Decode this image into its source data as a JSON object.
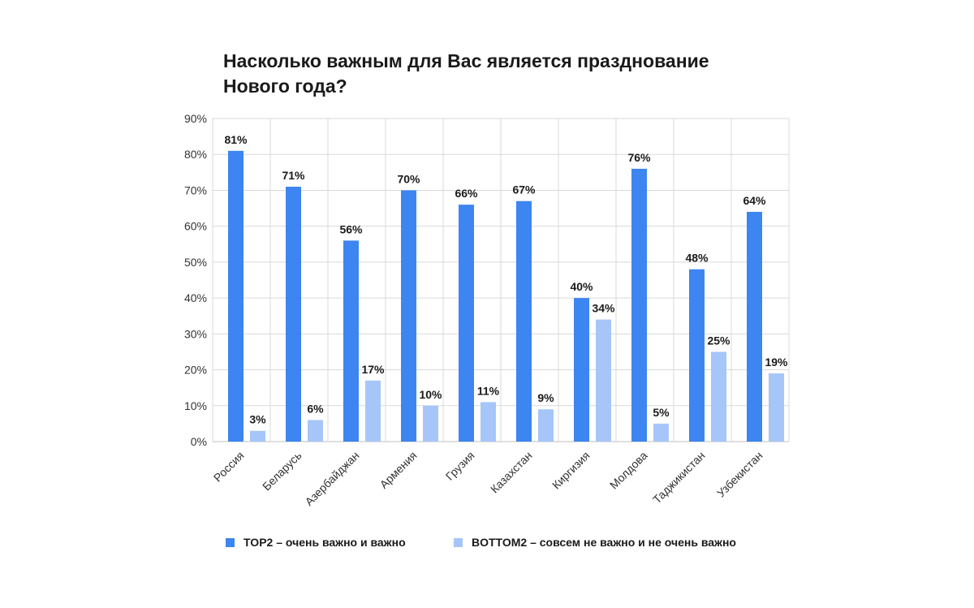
{
  "chart_data": {
    "type": "bar",
    "title_lines": [
      "Насколько важным для Вас является празднование",
      "Нового года?"
    ],
    "categories": [
      "Россия",
      "Беларусь",
      "Азербайджан",
      "Армения",
      "Грузия",
      "Казахстан",
      "Киргизия",
      "Молдова",
      "Таджикистан",
      "Узбекистан"
    ],
    "series": [
      {
        "name": "TOP2 –  очень важно и важно",
        "color": "#3d85f0",
        "values": [
          81,
          71,
          56,
          70,
          66,
          67,
          40,
          76,
          48,
          64
        ],
        "labels": [
          "81%",
          "71%",
          "56%",
          "70%",
          "66%",
          "67%",
          "40%",
          "76%",
          "48%",
          "64%"
        ]
      },
      {
        "name": "BOTTOM2 – совсем не важно и не очень важно",
        "color": "#a6c6f9",
        "values": [
          3,
          6,
          17,
          10,
          11,
          9,
          34,
          5,
          25,
          19
        ],
        "labels": [
          "3%",
          "6%",
          "17%",
          "10%",
          "11%",
          "9%",
          "34%",
          "5%",
          "25%",
          "19%"
        ]
      }
    ],
    "ylim": [
      0,
      90
    ],
    "yticks": [
      0,
      10,
      20,
      30,
      40,
      50,
      60,
      70,
      80,
      90
    ],
    "ytick_labels": [
      "0%",
      "10%",
      "20%",
      "30%",
      "40%",
      "50%",
      "60%",
      "70%",
      "80%",
      "90%"
    ],
    "xlabel": "",
    "ylabel": "",
    "grid": true,
    "legend_position": "bottom"
  }
}
